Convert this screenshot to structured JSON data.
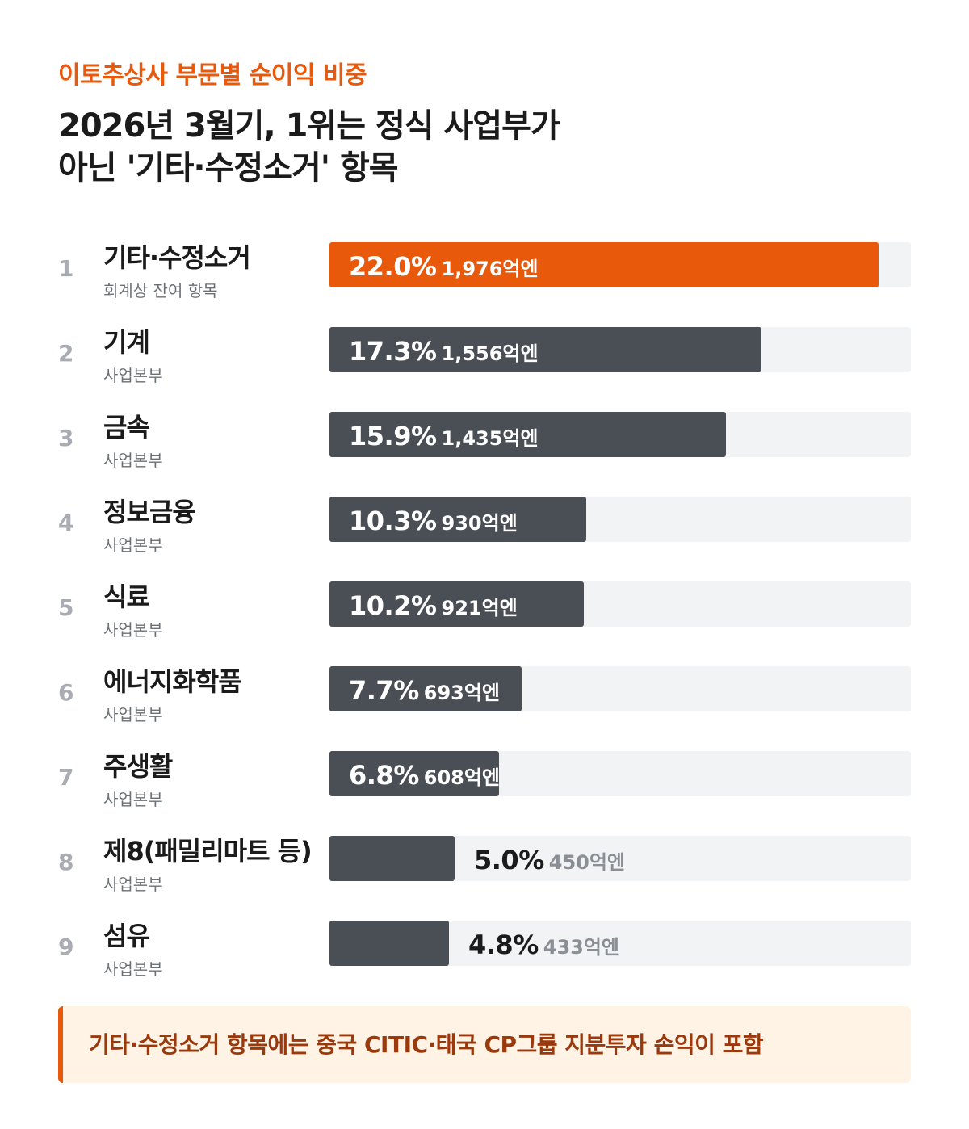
{
  "kicker": "이토추상사 부문별 순이익 비중",
  "headline": {
    "line1": "2026년 3월기, 1위는 정식 사업부가",
    "line2": "아닌 '기타·수정소거' 항목"
  },
  "colors": {
    "accent": "#e8590c",
    "bar_default": "#4a4e55",
    "track": "#f2f3f5"
  },
  "chart_data": {
    "type": "bar",
    "orientation": "horizontal",
    "categories": [
      "기타·수정소거",
      "기계",
      "금속",
      "정보금융",
      "식료",
      "에너지화학품",
      "주생활",
      "제8(패밀리마트 등)",
      "섬유"
    ],
    "ranks": [
      "1",
      "2",
      "3",
      "4",
      "5",
      "6",
      "7",
      "8",
      "9"
    ],
    "subtitles": [
      "회계상 잔여 항목",
      "사업본부",
      "사업본부",
      "사업본부",
      "사업본부",
      "사업본부",
      "사업본부",
      "사업본부",
      "사업본부"
    ],
    "values": [
      22.0,
      17.3,
      15.9,
      10.3,
      10.2,
      7.7,
      6.8,
      5.0,
      4.8
    ],
    "value_labels": [
      "22.0%",
      "17.3%",
      "15.9%",
      "10.3%",
      "10.2%",
      "7.7%",
      "6.8%",
      "5.0%",
      "4.8%"
    ],
    "amount_labels": [
      "1,976억엔",
      "1,556억엔",
      "1,435억엔",
      "930억엔",
      "921억엔",
      "693억엔",
      "608억엔",
      "450억엔",
      "433억엔"
    ],
    "highlight_index": 0,
    "xlim": [
      0,
      23.3
    ],
    "unit": "%"
  },
  "note": "기타·수정소거 항목에는 중국 CITIC·태국 CP그룹 지분투자 손익이 포함"
}
